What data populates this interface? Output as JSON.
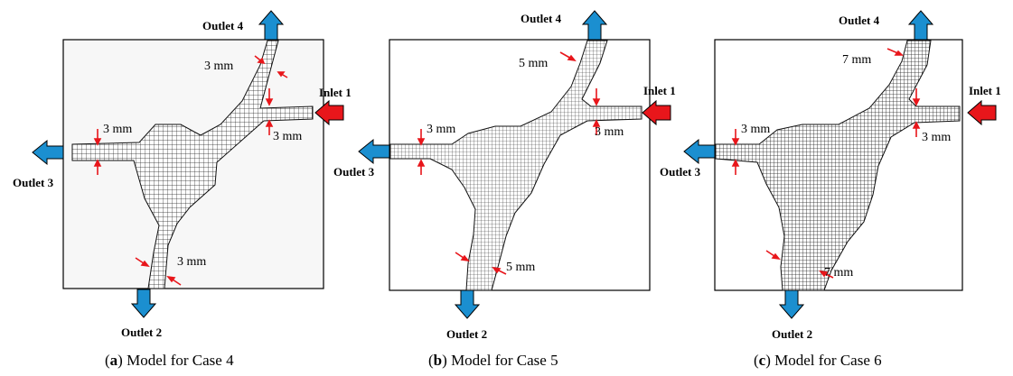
{
  "panels": [
    {
      "id": "a",
      "case": "Case 4",
      "caption_letter": "a",
      "caption_text": "Model for Case 4",
      "inlet": "Inlet 1",
      "outlets": {
        "o2": "Outlet 2",
        "o3": "Outlet 3",
        "o4": "Outlet 4"
      },
      "dims": {
        "top": "3 mm",
        "inlet": "3 mm",
        "left": "3 mm",
        "bottom": "3 mm"
      }
    },
    {
      "id": "b",
      "case": "Case 5",
      "caption_letter": "b",
      "caption_text": "Model for Case 5",
      "inlet": "Inlet 1",
      "outlets": {
        "o2": "Outlet 2",
        "o3": "Outlet 3",
        "o4": "Outlet 4"
      },
      "dims": {
        "top": "5 mm",
        "inlet": "3 mm",
        "left": "3 mm",
        "bottom": "5 mm"
      }
    },
    {
      "id": "c",
      "case": "Case 6",
      "caption_letter": "c",
      "caption_text": "Model for Case 6",
      "inlet": "Inlet 1",
      "outlets": {
        "o2": "Outlet 2",
        "o3": "Outlet 3",
        "o4": "Outlet 4"
      },
      "dims": {
        "top": "7 mm",
        "inlet": "3 mm",
        "left": "3 mm",
        "bottom": "7 mm"
      }
    }
  ],
  "colors": {
    "inlet_arrow": "#e8161b",
    "outlet_arrow": "#1b8fd0",
    "dimension_marker": "#e8161b",
    "mesh": "#222222",
    "frame": "#000000"
  }
}
